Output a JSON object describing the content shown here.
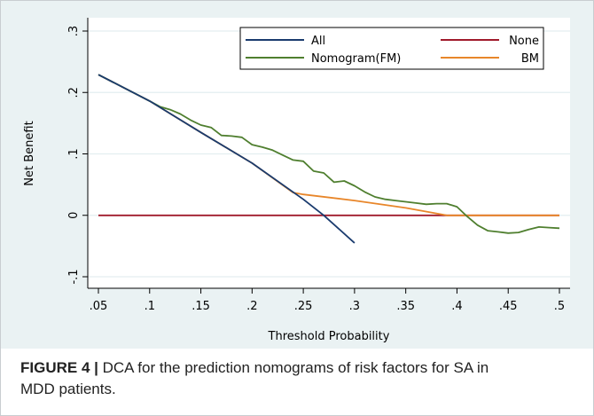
{
  "chart_data": {
    "type": "line",
    "title": "",
    "xlabel": "Threshold Probability",
    "ylabel": "Net Benefit",
    "xlim": [
      0.05,
      0.5
    ],
    "ylim": [
      -0.1,
      0.3
    ],
    "x_ticks": [
      0.05,
      0.1,
      0.15,
      0.2,
      0.25,
      0.3,
      0.35,
      0.4,
      0.45,
      0.5
    ],
    "x_tick_labels": [
      ".05",
      ".1",
      ".15",
      ".2",
      ".25",
      ".3",
      ".35",
      ".4",
      ".45",
      ".5"
    ],
    "y_ticks": [
      -0.1,
      0,
      0.1,
      0.2,
      0.3
    ],
    "y_tick_labels": [
      "-.1",
      "0",
      ".1",
      ".2",
      ".3"
    ],
    "grid": "horizontal",
    "legend_position": "top-right",
    "series": [
      {
        "name": "All",
        "color": "#1a3b6e",
        "x": [
          0.05,
          0.1,
          0.15,
          0.2,
          0.25,
          0.27,
          0.3
        ],
        "y": [
          0.229,
          0.186,
          0.135,
          0.085,
          0.026,
          0.0,
          -0.045
        ]
      },
      {
        "name": "None",
        "color": "#a01a2b",
        "x": [
          0.05,
          0.5
        ],
        "y": [
          0.0,
          0.0
        ]
      },
      {
        "name": "Nomogram(FM)",
        "color": "#4f7f2f",
        "x": [
          0.05,
          0.1,
          0.11,
          0.12,
          0.13,
          0.14,
          0.15,
          0.16,
          0.17,
          0.18,
          0.19,
          0.2,
          0.21,
          0.22,
          0.23,
          0.24,
          0.25,
          0.26,
          0.27,
          0.28,
          0.29,
          0.3,
          0.31,
          0.32,
          0.33,
          0.34,
          0.35,
          0.36,
          0.37,
          0.38,
          0.39,
          0.4,
          0.41,
          0.42,
          0.43,
          0.44,
          0.45,
          0.46,
          0.47,
          0.48,
          0.49,
          0.5
        ],
        "y": [
          0.229,
          0.186,
          0.177,
          0.172,
          0.165,
          0.155,
          0.147,
          0.143,
          0.13,
          0.129,
          0.127,
          0.115,
          0.111,
          0.106,
          0.098,
          0.09,
          0.088,
          0.072,
          0.069,
          0.054,
          0.056,
          0.048,
          0.038,
          0.03,
          0.026,
          0.024,
          0.022,
          0.02,
          0.018,
          0.019,
          0.019,
          0.014,
          -0.002,
          -0.016,
          -0.025,
          -0.027,
          -0.029,
          -0.028,
          -0.023,
          -0.019,
          -0.02,
          -0.021
        ]
      },
      {
        "name": "BM",
        "color": "#e8862a",
        "x": [
          0.05,
          0.1,
          0.15,
          0.2,
          0.24,
          0.25,
          0.3,
          0.35,
          0.39,
          0.4,
          0.45,
          0.5
        ],
        "y": [
          0.229,
          0.186,
          0.135,
          0.085,
          0.037,
          0.034,
          0.024,
          0.012,
          0.0,
          0.0,
          0.0,
          0.0
        ]
      }
    ]
  },
  "caption": {
    "label": "FIGURE 4 |",
    "text": " DCA for the prediction nomograms of risk factors for SA in MDD patients."
  }
}
